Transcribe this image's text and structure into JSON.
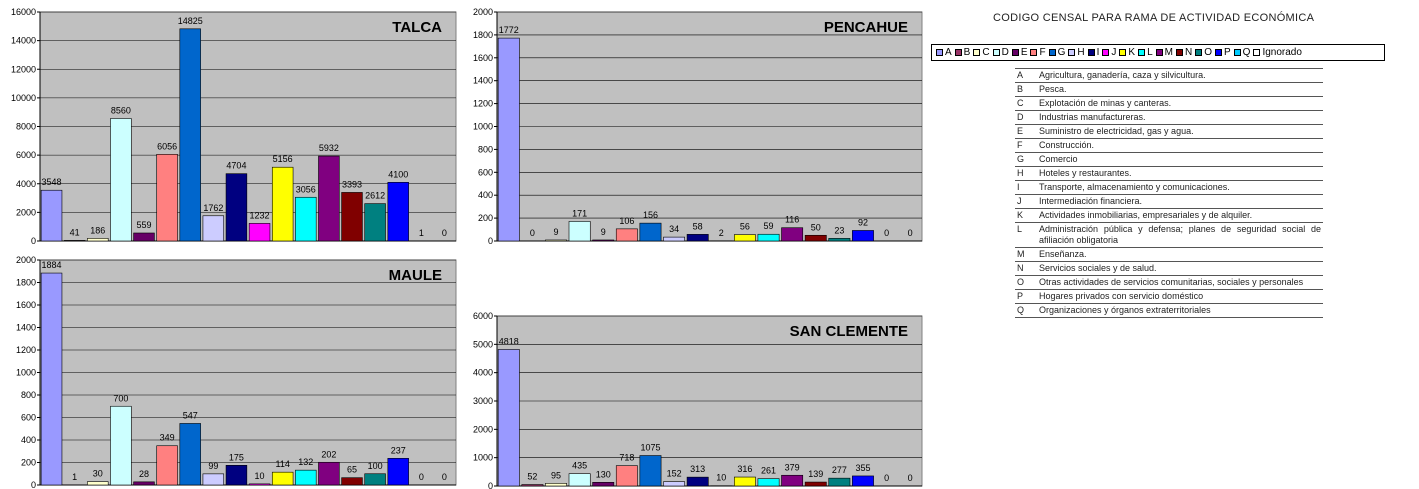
{
  "categories": [
    "A",
    "B",
    "C",
    "D",
    "E",
    "F",
    "G",
    "H",
    "I",
    "J",
    "K",
    "L",
    "M",
    "N",
    "O",
    "P",
    "Q"
  ],
  "colors": {
    "A": "#9999ff",
    "B": "#993366",
    "C": "#ffffcc",
    "D": "#ccffff",
    "E": "#660066",
    "F": "#ff8080",
    "G": "#0066cc",
    "H": "#ccccff",
    "I": "#000080",
    "J": "#ff00ff",
    "K": "#ffff00",
    "L": "#00ffff",
    "M": "#800080",
    "N": "#800000",
    "O": "#008080",
    "P": "#0000ff",
    "Q": "#00ccff",
    "Ignorado": "#ffffff"
  },
  "plot_background": "#c0c0c0",
  "chart_data": [
    {
      "type": "bar",
      "title": "TALCA",
      "categories": [
        "A",
        "B",
        "C",
        "D",
        "E",
        "F",
        "G",
        "H",
        "I",
        "J",
        "K",
        "L",
        "M",
        "N",
        "O",
        "P",
        "Q",
        "Ignorado"
      ],
      "values": [
        3548,
        41,
        186,
        8560,
        559,
        6056,
        14825,
        1762,
        4704,
        1232,
        5156,
        3056,
        5932,
        3393,
        2612,
        4100,
        1,
        0
      ],
      "value_labels": [
        "3548",
        "41",
        "186",
        "8560",
        "559",
        "6056",
        "14825",
        "1762",
        "4704",
        "1232",
        "5156",
        "3056",
        "5932",
        "3393",
        "2612",
        "4100",
        "1",
        "0"
      ],
      "ylim": [
        0,
        16000
      ],
      "yticks": [
        0,
        2000,
        4000,
        6000,
        8000,
        10000,
        12000,
        14000,
        16000
      ],
      "ytick_labels": [
        "0",
        "2000",
        "4000",
        "6000",
        "8000",
        "10000",
        "12000",
        "14000",
        "16000"
      ],
      "grid": true
    },
    {
      "type": "bar",
      "title": "PENCAHUE",
      "categories": [
        "A",
        "B",
        "C",
        "D",
        "E",
        "F",
        "G",
        "H",
        "I",
        "J",
        "K",
        "L",
        "M",
        "N",
        "O",
        "P",
        "Q",
        "Ignorado"
      ],
      "values": [
        1772,
        0,
        9,
        171,
        9,
        106,
        156,
        34,
        58,
        2,
        56,
        59,
        116,
        50,
        23,
        92,
        0,
        0
      ],
      "value_labels": [
        "1772",
        "0",
        "9",
        "171",
        "9",
        "106",
        "156",
        "34",
        "58",
        "2",
        "56",
        "59",
        "116",
        "50",
        "23",
        "92",
        "0",
        "0"
      ],
      "ylim": [
        0,
        2000
      ],
      "yticks": [
        0,
        200,
        400,
        600,
        800,
        1000,
        1200,
        1400,
        1600,
        1800,
        2000
      ],
      "ytick_labels": [
        "0",
        "200",
        "400",
        "600",
        "800",
        "1000",
        "1200",
        "1400",
        "1600",
        "1800",
        "2000"
      ],
      "grid": true
    },
    {
      "type": "bar",
      "title": "MAULE",
      "categories": [
        "A",
        "B",
        "C",
        "D",
        "E",
        "F",
        "G",
        "H",
        "I",
        "J",
        "K",
        "L",
        "M",
        "N",
        "O",
        "P",
        "Q",
        "Ignorado"
      ],
      "values": [
        1884,
        1,
        30,
        700,
        28,
        349,
        547,
        99,
        175,
        10,
        114,
        132,
        202,
        65,
        100,
        237,
        0,
        0
      ],
      "value_labels": [
        "1884",
        "1",
        "30",
        "700",
        "28",
        "349",
        "547",
        "99",
        "175",
        "10",
        "114",
        "132",
        "202",
        "65",
        "100",
        "237",
        "0",
        "0"
      ],
      "ylim": [
        0,
        2000
      ],
      "yticks": [
        0,
        200,
        400,
        600,
        800,
        1000,
        1200,
        1400,
        1600,
        1800,
        2000
      ],
      "ytick_labels": [
        "0",
        "200",
        "400",
        "600",
        "800",
        "1000",
        "1200",
        "1400",
        "1600",
        "1800",
        "2000"
      ],
      "grid": true
    },
    {
      "type": "bar",
      "title": "SAN CLEMENTE",
      "categories": [
        "A",
        "B",
        "C",
        "D",
        "E",
        "F",
        "G",
        "H",
        "I",
        "J",
        "K",
        "L",
        "M",
        "N",
        "O",
        "P",
        "Q",
        "Ignorado"
      ],
      "values": [
        4818,
        52,
        95,
        435,
        130,
        718,
        1075,
        152,
        313,
        10,
        316,
        261,
        379,
        139,
        277,
        355,
        0,
        0
      ],
      "value_labels": [
        "4818",
        "52",
        "95",
        "435",
        "130",
        "718",
        "1075",
        "152",
        "313",
        "10",
        "316",
        "261",
        "379",
        "139",
        "277",
        "355",
        "0",
        "0"
      ],
      "ylim": [
        0,
        6000
      ],
      "yticks": [
        0,
        1000,
        2000,
        3000,
        4000,
        5000,
        6000
      ],
      "ytick_labels": [
        "0",
        "1000",
        "2000",
        "3000",
        "4000",
        "5000",
        "6000"
      ],
      "grid": true
    }
  ],
  "legend": {
    "title": "CODIGO CENSAL PARA RAMA DE ACTIVIDAD ECONÓMICA",
    "items": [
      "A",
      "B",
      "C",
      "D",
      "E",
      "F",
      "G",
      "H",
      "I",
      "J",
      "K",
      "L",
      "M",
      "N",
      "O",
      "P",
      "Q",
      "Ignorado"
    ]
  },
  "codes": [
    {
      "code": "A",
      "desc": "Agricultura, ganadería, caza y silvicultura."
    },
    {
      "code": "B",
      "desc": "Pesca."
    },
    {
      "code": "C",
      "desc": "Explotación de minas y canteras."
    },
    {
      "code": "D",
      "desc": "Industrias manufactureras."
    },
    {
      "code": "E",
      "desc": "Suministro de electricidad, gas y agua."
    },
    {
      "code": "F",
      "desc": "Construcción."
    },
    {
      "code": "G",
      "desc": "Comercio"
    },
    {
      "code": "H",
      "desc": "Hoteles y restaurantes."
    },
    {
      "code": "I",
      "desc": "Transporte, almacenamiento y comunicaciones."
    },
    {
      "code": "J",
      "desc": "Intermediación financiera."
    },
    {
      "code": "K",
      "desc": "Actividades inmobiliarias, empresariales y de alquiler."
    },
    {
      "code": "L",
      "desc": "Administración pública y defensa; planes de seguridad social de afiliación obligatoria"
    },
    {
      "code": "M",
      "desc": "Enseñanza."
    },
    {
      "code": "N",
      "desc": "Servicios sociales y de salud."
    },
    {
      "code": "O",
      "desc": "Otras actividades de servicios comunitarias, sociales y personales"
    },
    {
      "code": "P",
      "desc": "Hogares privados con servicio doméstico"
    },
    {
      "code": "Q",
      "desc": "Organizaciones y órganos extraterritoriales"
    }
  ]
}
